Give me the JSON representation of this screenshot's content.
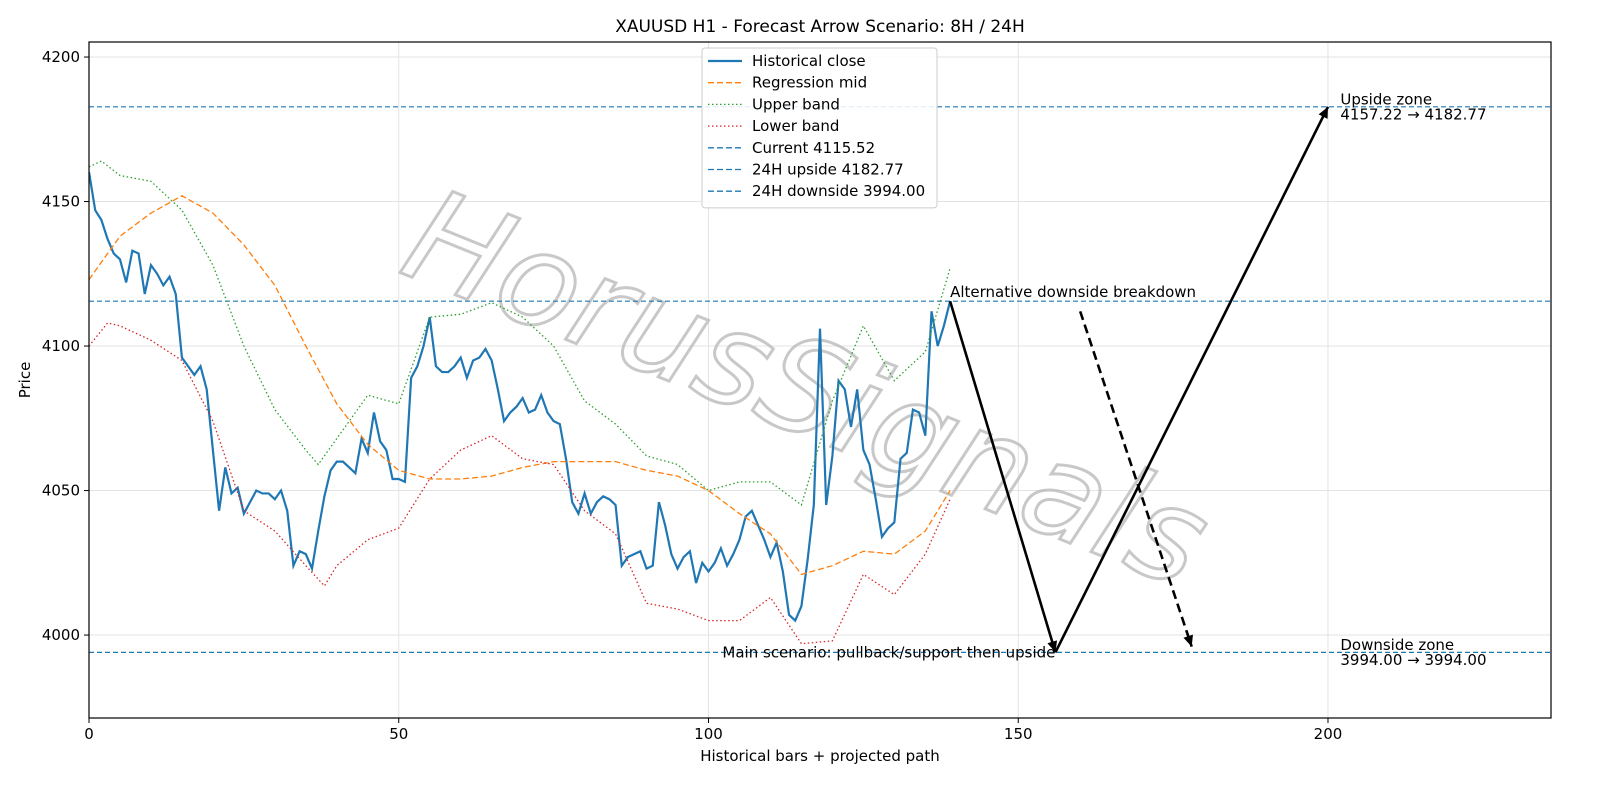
{
  "chart_data": {
    "type": "line",
    "title": "XAUUSD H1 - Forecast Arrow Scenario: 8H / 24H",
    "xlabel": "Historical bars + projected path",
    "ylabel": "Price",
    "xlim": [
      0,
      236
    ],
    "ylim": [
      3971.3,
      4205.2
    ],
    "xticks": [
      0,
      50,
      100,
      150,
      200
    ],
    "yticks": [
      4000,
      4050,
      4100,
      4150,
      4200
    ],
    "grid": true,
    "legend": "upper center",
    "series": [
      {
        "name": "Historical close",
        "color": "#1f77b4",
        "style": "solid",
        "x": [
          0,
          1,
          2,
          3,
          4,
          5,
          6,
          7,
          8,
          9,
          10,
          11,
          12,
          13,
          14,
          15,
          16,
          17,
          18,
          19,
          20,
          21,
          22,
          23,
          24,
          25,
          26,
          27,
          28,
          29,
          30,
          31,
          32,
          33,
          34,
          35,
          36,
          37,
          38,
          39,
          40,
          41,
          42,
          43,
          44,
          45,
          46,
          47,
          48,
          49,
          50,
          51,
          52,
          53,
          54,
          55,
          56,
          57,
          58,
          59,
          60,
          61,
          62,
          63,
          64,
          65,
          66,
          67,
          68,
          69,
          70,
          71,
          72,
          73,
          74,
          75,
          76,
          77,
          78,
          79,
          80,
          81,
          82,
          83,
          84,
          85,
          86,
          87,
          88,
          89,
          90,
          91,
          92,
          93,
          94,
          95,
          96,
          97,
          98,
          99,
          100,
          101,
          102,
          103,
          104,
          105,
          106,
          107,
          108,
          109,
          110,
          111,
          112,
          113,
          114,
          115,
          116,
          117,
          118,
          119,
          120,
          121,
          122,
          123,
          124,
          125,
          126,
          127,
          128,
          129,
          130,
          131,
          132,
          133,
          134,
          135,
          136,
          137,
          138,
          139
        ],
        "values": [
          4160.2,
          4147,
          4143.6,
          4137,
          4132,
          4130,
          4122,
          4133,
          4132,
          4118,
          4128,
          4125,
          4121,
          4124,
          4118,
          4096,
          4093,
          4090,
          4093,
          4085,
          4064,
          4043,
          4058,
          4049,
          4051,
          4042,
          4046,
          4050,
          4049,
          4049,
          4047,
          4050,
          4043,
          4024,
          4029,
          4028,
          4023,
          4036,
          4048,
          4057,
          4060,
          4060,
          4058,
          4056,
          4068,
          4063,
          4077,
          4067,
          4064,
          4054,
          4054,
          4053,
          4089,
          4093,
          4100,
          4110,
          4093,
          4091,
          4091,
          4093,
          4096,
          4089,
          4095,
          4096,
          4099,
          4095,
          4085,
          4074,
          4077,
          4079,
          4082,
          4077,
          4078,
          4083,
          4077,
          4074,
          4073,
          4061,
          4046,
          4042,
          4049,
          4042,
          4046,
          4048,
          4047,
          4045,
          4024,
          4027,
          4028,
          4029,
          4023,
          4024,
          4046,
          4038,
          4028,
          4023,
          4027,
          4029,
          4018,
          4025,
          4022,
          4025,
          4030,
          4024,
          4028,
          4033,
          4041,
          4043,
          4038,
          4033,
          4027,
          4032,
          4022,
          4007,
          4005,
          4010,
          4026,
          4045,
          4106,
          4045,
          4062,
          4088,
          4085,
          4072,
          4085,
          4064,
          4059,
          4047,
          4034,
          4037,
          4039,
          4061,
          4063,
          4078,
          4077,
          4069,
          4112,
          4100,
          4107,
          4115.52
        ]
      },
      {
        "name": "Regression mid",
        "color": "#ff7f0e",
        "style": "dashed",
        "x": [
          0,
          5,
          10,
          15,
          20,
          25,
          30,
          35,
          40,
          45,
          50,
          55,
          60,
          65,
          70,
          75,
          80,
          85,
          90,
          95,
          100,
          105,
          110,
          115,
          120,
          125,
          130,
          135,
          139
        ],
        "values": [
          4123,
          4138,
          4146,
          4152,
          4146,
          4135,
          4121,
          4100,
          4080,
          4066,
          4057,
          4054,
          4054,
          4055,
          4058,
          4060,
          4060,
          4060,
          4057,
          4055,
          4050,
          4042,
          4035,
          4021,
          4024,
          4029,
          4028,
          4036,
          4050
        ]
      },
      {
        "name": "Upper band",
        "color": "#2ca02c",
        "style": "dotted",
        "x": [
          0,
          2,
          5,
          10,
          15,
          20,
          25,
          30,
          35,
          37,
          40,
          45,
          50,
          55,
          60,
          65,
          70,
          75,
          80,
          85,
          90,
          95,
          100,
          105,
          110,
          115,
          120,
          125,
          130,
          135,
          139
        ],
        "values": [
          4162,
          4164,
          4159,
          4157,
          4147,
          4128,
          4100,
          4078,
          4064,
          4059,
          4068,
          4083,
          4080,
          4110,
          4111,
          4115,
          4110,
          4100,
          4081,
          4073,
          4062,
          4059,
          4050,
          4053,
          4053,
          4045,
          4081,
          4107,
          4088,
          4098,
          4127
        ]
      },
      {
        "name": "Lower band",
        "color": "#d62728",
        "style": "dotted",
        "x": [
          0,
          3,
          5,
          10,
          15,
          20,
          25,
          30,
          35,
          38,
          40,
          45,
          50,
          55,
          60,
          65,
          70,
          75,
          80,
          85,
          90,
          95,
          100,
          105,
          110,
          115,
          120,
          125,
          130,
          135,
          139
        ],
        "values": [
          4100,
          4108,
          4107,
          4102,
          4095,
          4074,
          4043,
          4036,
          4024,
          4017,
          4024,
          4033,
          4037,
          4054,
          4064,
          4069,
          4061,
          4059,
          4043,
          4035,
          4011,
          4009,
          4005,
          4005,
          4013,
          3997,
          3998,
          4021,
          4014,
          4028,
          4047
        ]
      }
    ],
    "hlines": [
      {
        "name": "Current 4115.52",
        "value": 4115.52,
        "color": "#1f77b4"
      },
      {
        "name": "24H upside 4182.77",
        "value": 4182.77,
        "color": "#1f77b4"
      },
      {
        "name": "24H downside 3994.00",
        "value": 3994.0,
        "color": "#1f77b4"
      }
    ],
    "arrows": [
      {
        "x": [
          139,
          156
        ],
        "y": [
          4115.52,
          3994.0
        ],
        "style": "solid"
      },
      {
        "x": [
          156,
          200
        ],
        "y": [
          3994.0,
          4182.77
        ],
        "style": "solid"
      },
      {
        "x": [
          160,
          178
        ],
        "y": [
          4112,
          3996
        ],
        "style": "dashed"
      }
    ],
    "annotations": [
      {
        "lines": [
          "Alternative downside breakdown"
        ],
        "x": 139,
        "y": 4115.52,
        "ha": "left",
        "va": "bottom"
      },
      {
        "lines": [
          "Main scenario: pullback/support then upside"
        ],
        "x": 156,
        "y": 3994.0,
        "ha": "right",
        "va": "center"
      },
      {
        "lines": [
          "Upside zone",
          "4157.22 → 4182.77"
        ],
        "x": 202,
        "y": 4182.77,
        "ha": "left",
        "va": "center"
      },
      {
        "lines": [
          "Downside zone",
          "3994.00 → 3994.00"
        ],
        "x": 202,
        "y": 3994.0,
        "ha": "left",
        "va": "center"
      }
    ],
    "watermark": "HorusSignals"
  }
}
